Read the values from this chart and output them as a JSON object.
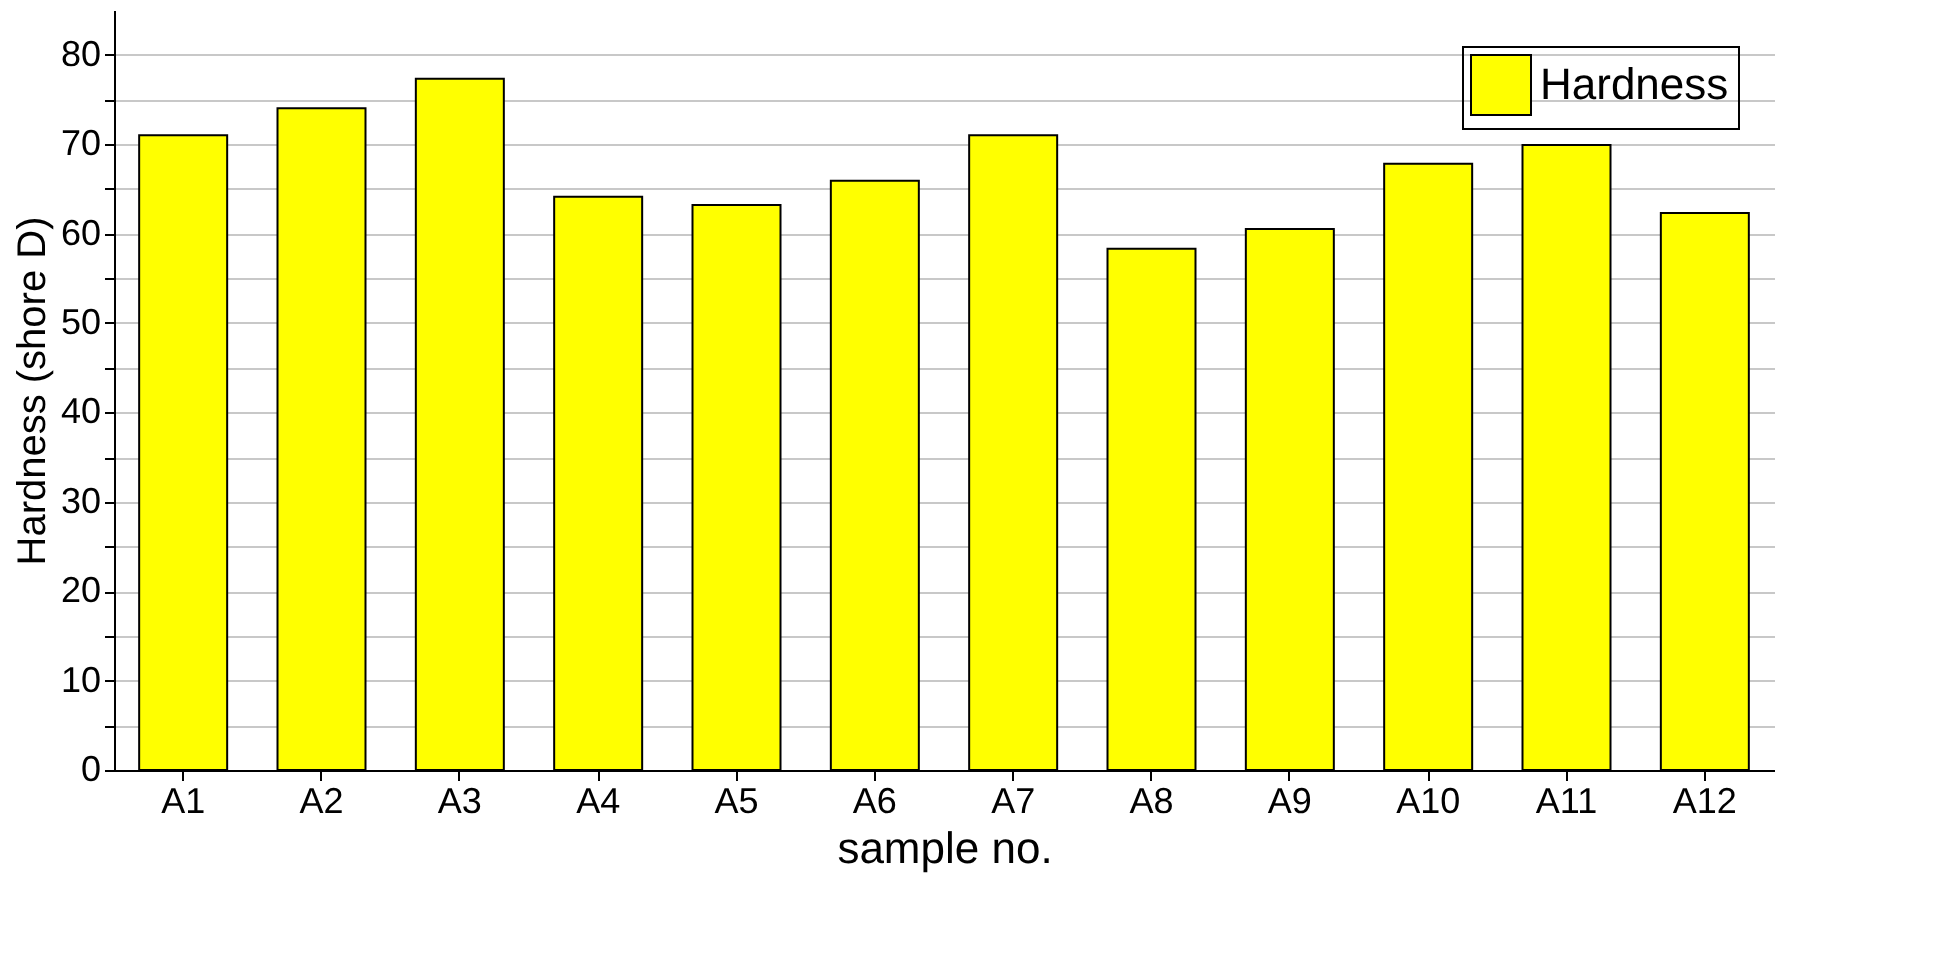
{
  "chart_data": {
    "type": "bar",
    "xlabel": "sample no.",
    "ylabel": "Hardness (shore D)",
    "categories": [
      "A1",
      "A2",
      "A3",
      "A4",
      "A5",
      "A6",
      "A7",
      "A8",
      "A9",
      "A10",
      "A11",
      "A12"
    ],
    "series": [
      {
        "name": "Hardness",
        "color": "#ffff00",
        "values": [
          71.0,
          74.0,
          77.3,
          64.1,
          63.2,
          65.9,
          71.0,
          58.3,
          60.5,
          67.8,
          69.9,
          62.3
        ]
      }
    ],
    "ylim": [
      0,
      85
    ],
    "yticks": [
      0,
      {
        "value": 5,
        "label": null
      },
      10,
      {
        "value": 15,
        "label": null
      },
      20,
      {
        "value": 25,
        "label": null
      },
      30,
      {
        "value": 35,
        "label": null
      },
      40,
      {
        "value": 45,
        "label": null
      },
      50,
      {
        "value": 55,
        "label": null
      },
      60,
      {
        "value": 65,
        "label": null
      },
      70,
      {
        "value": 75,
        "label": null
      },
      80
    ],
    "grid": "y",
    "legend": "top right"
  }
}
